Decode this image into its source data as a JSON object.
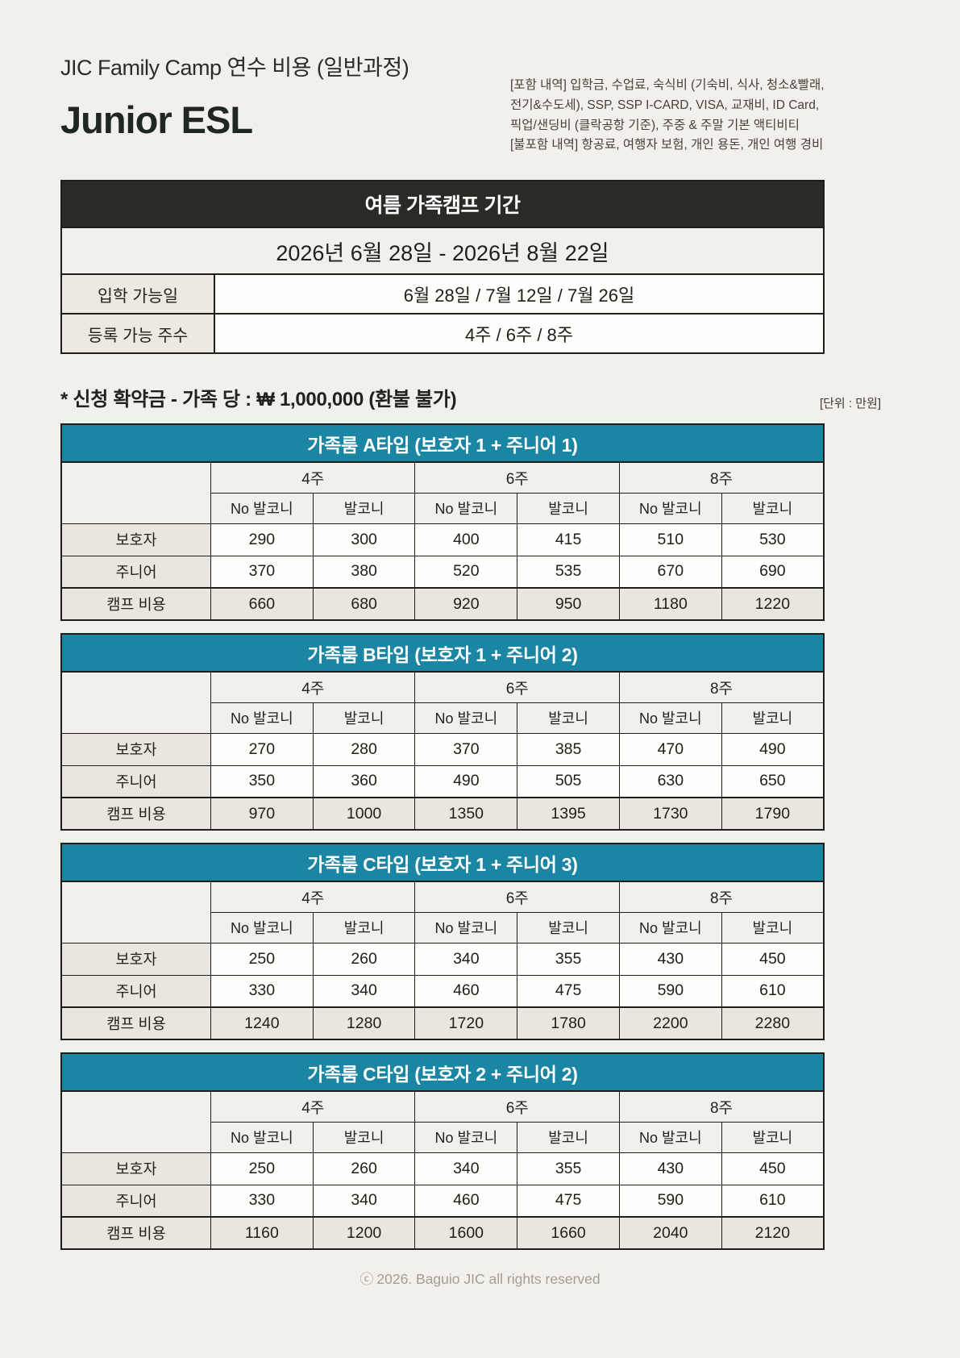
{
  "header": {
    "title": "JIC Family Camp 연수 비용 (일반과정)",
    "program": "Junior ESL",
    "info_lines": [
      "[포함 내역]  입학금, 수업료, 숙식비 (기숙비, 식사, 청소&빨래,",
      "전기&수도세), SSP, SSP I-CARD, VISA, 교재비, ID Card,",
      "픽업/샌딩비 (클락공항 기준), 주중 & 주말 기본 액티비티",
      "[불포함 내역] 항공료, 여행자 보험, 개인 용돈, 개인 여행 경비"
    ]
  },
  "schedule": {
    "header": "여름 가족캠프 기간",
    "period": "2026년 6월 28일 - 2026년 8월 22일",
    "rows": [
      {
        "label": "입학 가능일",
        "value": "6월 28일 / 7월 12일 / 7월 26일"
      },
      {
        "label": "등록 가능 주수",
        "value": "4주 / 6주 / 8주"
      }
    ]
  },
  "deposit": {
    "note": "* 신청 확약금 - 가족 당 : ₩ 1,000,000 (환불 불가)",
    "unit": "[단위 : 만원]"
  },
  "week_labels": [
    "4주",
    "6주",
    "8주"
  ],
  "balcony_labels": [
    "No 발코니",
    "발코니"
  ],
  "price_tables": [
    {
      "title": "가족룸  A타입 (보호자 1 + 주니어 1)",
      "rows": [
        {
          "label": "보호자",
          "values": [
            "290",
            "300",
            "400",
            "415",
            "510",
            "530"
          ]
        },
        {
          "label": "주니어",
          "values": [
            "370",
            "380",
            "520",
            "535",
            "670",
            "690"
          ]
        },
        {
          "label": "캠프 비용",
          "values": [
            "660",
            "680",
            "920",
            "950",
            "1180",
            "1220"
          ]
        }
      ]
    },
    {
      "title": "가족룸 B타입 (보호자 1 + 주니어 2)",
      "rows": [
        {
          "label": "보호자",
          "values": [
            "270",
            "280",
            "370",
            "385",
            "470",
            "490"
          ]
        },
        {
          "label": "주니어",
          "values": [
            "350",
            "360",
            "490",
            "505",
            "630",
            "650"
          ]
        },
        {
          "label": "캠프 비용",
          "values": [
            "970",
            "1000",
            "1350",
            "1395",
            "1730",
            "1790"
          ]
        }
      ]
    },
    {
      "title": "가족룸 C타입 (보호자 1 + 주니어 3)",
      "rows": [
        {
          "label": "보호자",
          "values": [
            "250",
            "260",
            "340",
            "355",
            "430",
            "450"
          ]
        },
        {
          "label": "주니어",
          "values": [
            "330",
            "340",
            "460",
            "475",
            "590",
            "610"
          ]
        },
        {
          "label": "캠프 비용",
          "values": [
            "1240",
            "1280",
            "1720",
            "1780",
            "2200",
            "2280"
          ]
        }
      ]
    },
    {
      "title": "가족룸 C타입 (보호자 2 + 주니어 2)",
      "rows": [
        {
          "label": "보호자",
          "values": [
            "250",
            "260",
            "340",
            "355",
            "430",
            "450"
          ]
        },
        {
          "label": "주니어",
          "values": [
            "330",
            "340",
            "460",
            "475",
            "590",
            "610"
          ]
        },
        {
          "label": "캠프 비용",
          "values": [
            "1160",
            "1200",
            "1600",
            "1660",
            "2040",
            "2120"
          ]
        }
      ]
    }
  ],
  "footer": {
    "copyright_icon": "ⓒ",
    "text": "2026. Baguio JIC all rights reserved"
  },
  "colors": {
    "teal_header": "#1b86a4",
    "dark_header": "#2b2a26",
    "label_cell_bg": "#e9e6df",
    "page_bg": "#f2f0ea"
  }
}
